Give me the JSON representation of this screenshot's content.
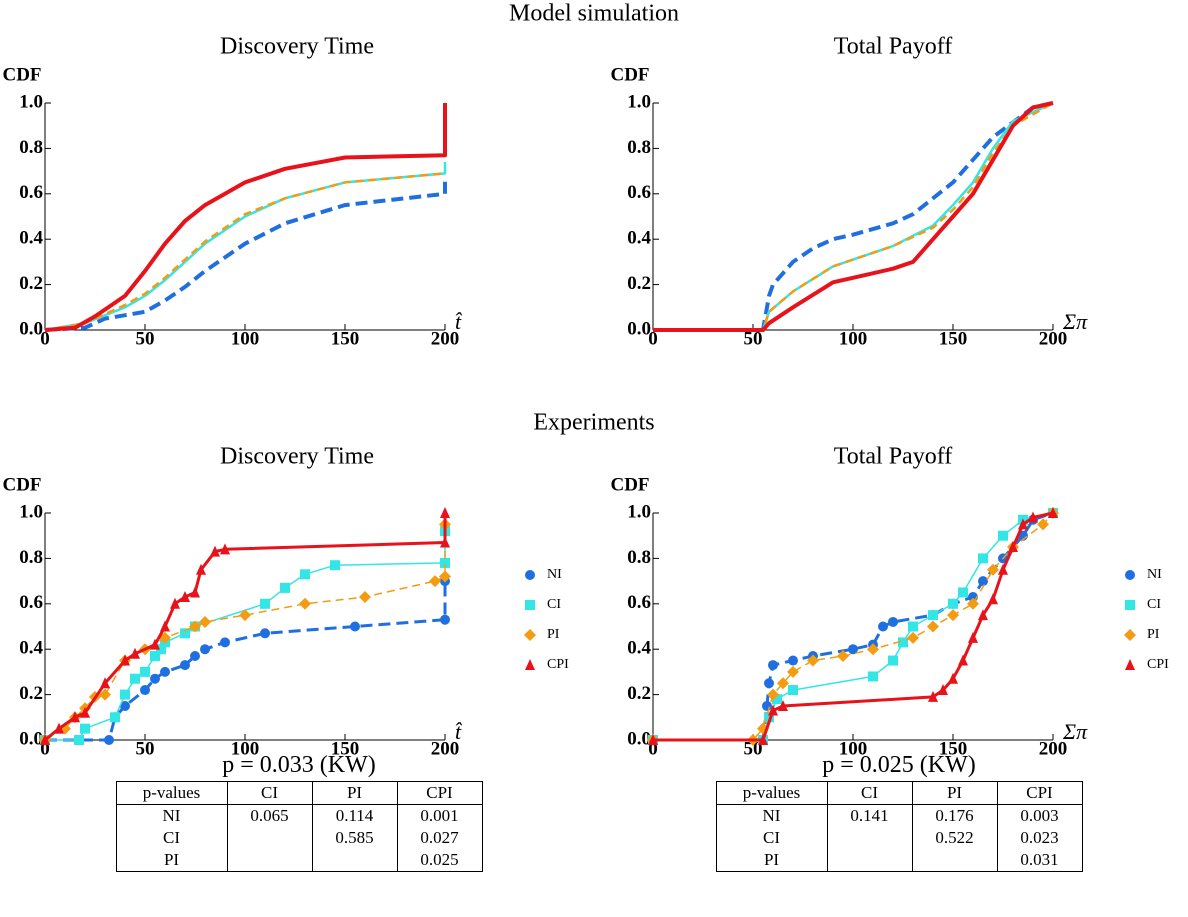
{
  "headings": [
    "Model simulation",
    "Experiments"
  ],
  "chart_data": [
    {
      "type": "line",
      "title": "Discovery Time",
      "ylabel": "CDF",
      "xlabel": "t̂",
      "xlim": [
        0,
        200
      ],
      "ylim": [
        0,
        1
      ],
      "xticks": [
        0,
        50,
        100,
        150,
        200
      ],
      "yticks": [
        {
          "value": 0,
          "label": "0.0"
        },
        0.2,
        0.4,
        0.6,
        0.8,
        {
          "value": 1,
          "label": "1.0"
        }
      ],
      "series": [
        {
          "color": "#1f6fe0",
          "dashed": true,
          "x": [
            0,
            20,
            30,
            50,
            60,
            70,
            80,
            100,
            120,
            150,
            200,
            200
          ],
          "values": [
            0,
            0.01,
            0.05,
            0.08,
            0.13,
            0.19,
            0.26,
            0.38,
            0.47,
            0.55,
            0.6,
            0.66
          ]
        },
        {
          "color": "#33e6e6",
          "dashed": false,
          "x": [
            0,
            20,
            40,
            50,
            60,
            70,
            80,
            100,
            120,
            150,
            200,
            200
          ],
          "values": [
            0,
            0.03,
            0.1,
            0.15,
            0.22,
            0.3,
            0.38,
            0.5,
            0.58,
            0.65,
            0.69,
            0.74
          ]
        },
        {
          "color": "#f39c12",
          "dashed": true,
          "x": [
            0,
            20,
            40,
            50,
            60,
            70,
            80,
            100,
            120,
            150,
            200
          ],
          "values": [
            0,
            0.03,
            0.11,
            0.16,
            0.23,
            0.31,
            0.39,
            0.51,
            0.58,
            0.65,
            0.69
          ]
        },
        {
          "color": "#e8121a",
          "dashed": false,
          "x": [
            0,
            15,
            25,
            40,
            50,
            60,
            70,
            80,
            100,
            120,
            150,
            200,
            200
          ],
          "values": [
            0,
            0.01,
            0.06,
            0.15,
            0.26,
            0.38,
            0.48,
            0.55,
            0.65,
            0.71,
            0.76,
            0.77,
            1
          ]
        }
      ]
    },
    {
      "type": "line",
      "title": "Total Payoff",
      "ylabel": "CDF",
      "xlabel": "Σπ",
      "xlim": [
        0,
        200
      ],
      "ylim": [
        0,
        1
      ],
      "xticks": [
        0,
        50,
        100,
        150,
        200
      ],
      "yticks": [
        {
          "value": 0,
          "label": "0.0"
        },
        0.2,
        0.4,
        0.6,
        0.8,
        {
          "value": 1,
          "label": "1.0"
        }
      ],
      "series": [
        {
          "color": "#1f6fe0",
          "dashed": true,
          "x": [
            0,
            55,
            58,
            60,
            70,
            80,
            90,
            100,
            120,
            130,
            150,
            170,
            190,
            200
          ],
          "values": [
            0,
            0,
            0.15,
            0.2,
            0.3,
            0.36,
            0.4,
            0.42,
            0.47,
            0.51,
            0.65,
            0.85,
            0.98,
            1
          ]
        },
        {
          "color": "#33e6e6",
          "dashed": false,
          "x": [
            0,
            55,
            58,
            70,
            90,
            100,
            120,
            140,
            150,
            160,
            170,
            180,
            200
          ],
          "values": [
            0,
            0,
            0.08,
            0.17,
            0.28,
            0.31,
            0.37,
            0.46,
            0.55,
            0.65,
            0.8,
            0.92,
            1
          ]
        },
        {
          "color": "#f39c12",
          "dashed": true,
          "x": [
            0,
            55,
            58,
            70,
            90,
            100,
            120,
            140,
            150,
            160,
            170,
            180,
            200
          ],
          "values": [
            0,
            0,
            0.08,
            0.17,
            0.28,
            0.31,
            0.37,
            0.45,
            0.53,
            0.63,
            0.78,
            0.9,
            1
          ]
        },
        {
          "color": "#e8121a",
          "dashed": false,
          "x": [
            0,
            55,
            58,
            70,
            90,
            100,
            120,
            130,
            140,
            150,
            160,
            170,
            180,
            190,
            200
          ],
          "values": [
            0,
            0,
            0.03,
            0.1,
            0.21,
            0.23,
            0.27,
            0.3,
            0.4,
            0.5,
            0.6,
            0.75,
            0.9,
            0.98,
            1
          ]
        }
      ]
    },
    {
      "type": "line",
      "title": "Discovery Time",
      "ylabel": "CDF",
      "xlabel": "t̂",
      "legend": "right",
      "xlim": [
        0,
        200
      ],
      "ylim": [
        0,
        1
      ],
      "xticks": [
        0,
        50,
        100,
        150,
        200
      ],
      "yticks": [
        {
          "value": 0,
          "label": "0.0"
        },
        0.2,
        0.4,
        0.6,
        0.8,
        {
          "value": 1,
          "label": "1.0"
        }
      ],
      "series": [
        {
          "name": "NI",
          "color": "#1f6fe0",
          "dashed": true,
          "marker": "circle",
          "x": [
            0,
            32,
            35,
            40,
            50,
            55,
            60,
            70,
            75,
            80,
            90,
            110,
            155,
            200,
            200
          ],
          "values": [
            0,
            0,
            0.1,
            0.15,
            0.22,
            0.27,
            0.3,
            0.33,
            0.37,
            0.4,
            0.43,
            0.47,
            0.5,
            0.53,
            0.7
          ]
        },
        {
          "name": "CI",
          "color": "#33e6e6",
          "dashed": false,
          "marker": "square",
          "x": [
            0,
            17,
            20,
            35,
            40,
            45,
            50,
            55,
            58,
            60,
            70,
            75,
            110,
            120,
            130,
            145,
            200,
            200
          ],
          "values": [
            0,
            0,
            0.05,
            0.1,
            0.2,
            0.27,
            0.3,
            0.37,
            0.4,
            0.43,
            0.47,
            0.5,
            0.6,
            0.67,
            0.73,
            0.77,
            0.78,
            0.92
          ]
        },
        {
          "name": "PI",
          "color": "#f39c12",
          "dashed": true,
          "marker": "diamond",
          "x": [
            0,
            10,
            15,
            20,
            25,
            30,
            40,
            50,
            60,
            75,
            80,
            100,
            130,
            160,
            195,
            200,
            200
          ],
          "values": [
            0,
            0.05,
            0.1,
            0.14,
            0.19,
            0.2,
            0.35,
            0.4,
            0.45,
            0.5,
            0.52,
            0.55,
            0.6,
            0.63,
            0.7,
            0.72,
            0.95
          ]
        },
        {
          "name": "CPI",
          "color": "#e8121a",
          "dashed": false,
          "marker": "triangle",
          "x": [
            0,
            7,
            15,
            20,
            30,
            40,
            45,
            55,
            60,
            65,
            70,
            75,
            78,
            85,
            90,
            200,
            200
          ],
          "values": [
            0,
            0.05,
            0.1,
            0.12,
            0.25,
            0.35,
            0.38,
            0.42,
            0.5,
            0.6,
            0.63,
            0.65,
            0.75,
            0.83,
            0.84,
            0.87,
            1
          ]
        }
      ]
    },
    {
      "type": "line",
      "title": "Total Payoff",
      "ylabel": "CDF",
      "xlabel": "Σπ",
      "legend": "right",
      "xlim": [
        0,
        200
      ],
      "ylim": [
        0,
        1
      ],
      "xticks": [
        0,
        50,
        100,
        150,
        200
      ],
      "yticks": [
        {
          "value": 0,
          "label": "0.0"
        },
        0.2,
        0.4,
        0.6,
        0.8,
        {
          "value": 1,
          "label": "1.0"
        }
      ],
      "series": [
        {
          "name": "NI",
          "color": "#1f6fe0",
          "dashed": true,
          "marker": "circle",
          "x": [
            0,
            55,
            57,
            58,
            60,
            70,
            80,
            100,
            110,
            115,
            120,
            140,
            150,
            160,
            165,
            175,
            185,
            190,
            200
          ],
          "values": [
            0,
            0,
            0.15,
            0.25,
            0.33,
            0.35,
            0.37,
            0.4,
            0.42,
            0.5,
            0.52,
            0.55,
            0.6,
            0.63,
            0.7,
            0.8,
            0.9,
            0.97,
            1
          ]
        },
        {
          "name": "CI",
          "color": "#33e6e6",
          "dashed": false,
          "marker": "square",
          "x": [
            0,
            55,
            58,
            62,
            70,
            110,
            120,
            125,
            130,
            140,
            150,
            155,
            165,
            175,
            185,
            200
          ],
          "values": [
            0,
            0,
            0.1,
            0.18,
            0.22,
            0.28,
            0.35,
            0.43,
            0.5,
            0.55,
            0.6,
            0.65,
            0.8,
            0.9,
            0.97,
            1
          ]
        },
        {
          "name": "PI",
          "color": "#f39c12",
          "dashed": true,
          "marker": "diamond",
          "x": [
            0,
            50,
            55,
            60,
            65,
            70,
            80,
            95,
            110,
            130,
            140,
            150,
            160,
            170,
            180,
            195,
            200
          ],
          "values": [
            0,
            0,
            0.05,
            0.2,
            0.25,
            0.3,
            0.35,
            0.37,
            0.4,
            0.45,
            0.5,
            0.55,
            0.6,
            0.75,
            0.85,
            0.95,
            1
          ]
        },
        {
          "name": "CPI",
          "color": "#e8121a",
          "dashed": false,
          "marker": "triangle",
          "x": [
            0,
            55,
            60,
            65,
            140,
            145,
            150,
            155,
            160,
            165,
            170,
            175,
            180,
            185,
            190,
            200
          ],
          "values": [
            0,
            0,
            0.13,
            0.15,
            0.19,
            0.22,
            0.27,
            0.35,
            0.45,
            0.55,
            0.62,
            0.75,
            0.85,
            0.95,
            0.98,
            1
          ]
        }
      ]
    }
  ],
  "tables": [
    {
      "caption": "p = 0.033 (KW)",
      "header": [
        "p-values",
        "CI",
        "PI",
        "CPI"
      ],
      "rows": [
        [
          "NI",
          0.065,
          0.114,
          0.001
        ],
        [
          "CI",
          null,
          0.585,
          0.027
        ],
        [
          "PI",
          null,
          null,
          0.025
        ]
      ]
    },
    {
      "caption": "p = 0.025 (KW)",
      "header": [
        "p-values",
        "CI",
        "PI",
        "CPI"
      ],
      "rows": [
        [
          "NI",
          0.141,
          0.176,
          0.003
        ],
        [
          "CI",
          null,
          0.522,
          0.023
        ],
        [
          "PI",
          null,
          null,
          0.031
        ]
      ]
    }
  ]
}
